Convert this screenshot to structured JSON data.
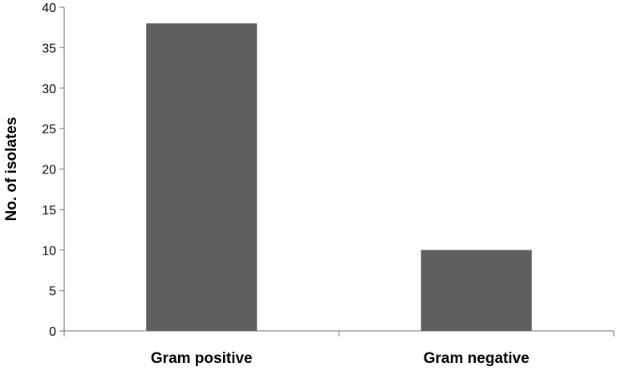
{
  "chart_data": {
    "type": "bar",
    "categories": [
      "Gram positive",
      "Gram negative"
    ],
    "values": [
      38,
      10
    ],
    "title": "",
    "xlabel": "",
    "ylabel": "No. of isolates",
    "ylim": [
      0,
      40
    ],
    "yticks": [
      0,
      5,
      10,
      15,
      20,
      25,
      30,
      35,
      40
    ],
    "grid": false,
    "legend": "none",
    "bar_color": "#5f5f5f"
  }
}
